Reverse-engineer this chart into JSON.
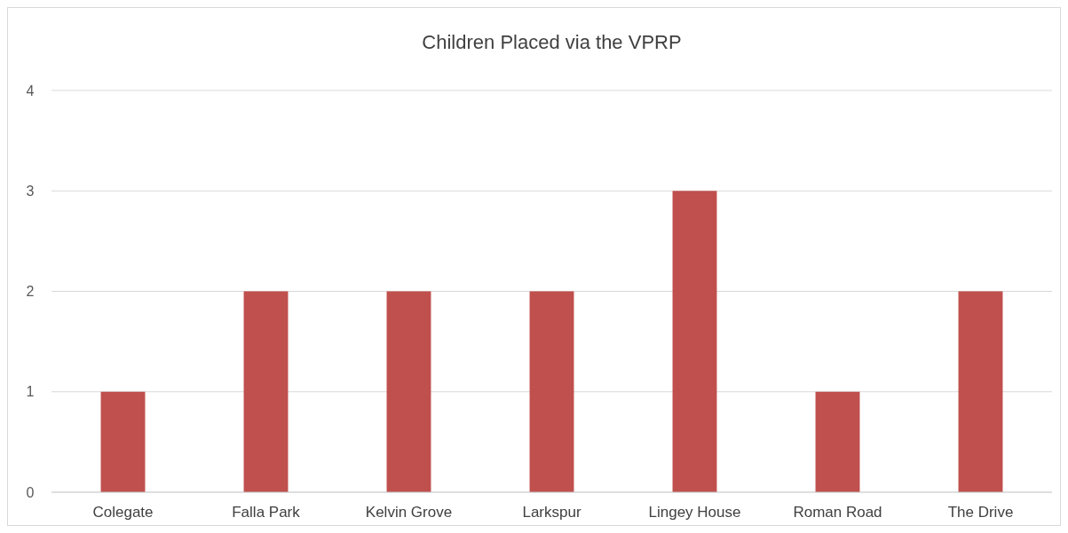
{
  "chart_data": {
    "type": "bar",
    "title": "Children Placed via the VPRP",
    "categories": [
      "Colegate",
      "Falla Park",
      "Kelvin Grove",
      "Larkspur",
      "Lingey House",
      "Roman Road",
      "The Drive"
    ],
    "values": [
      1,
      2,
      2,
      2,
      3,
      1,
      2
    ],
    "color": "#c0504d",
    "ylim": [
      0,
      4
    ],
    "yticks": [
      0,
      1,
      2,
      3,
      4
    ],
    "grid": "y"
  }
}
